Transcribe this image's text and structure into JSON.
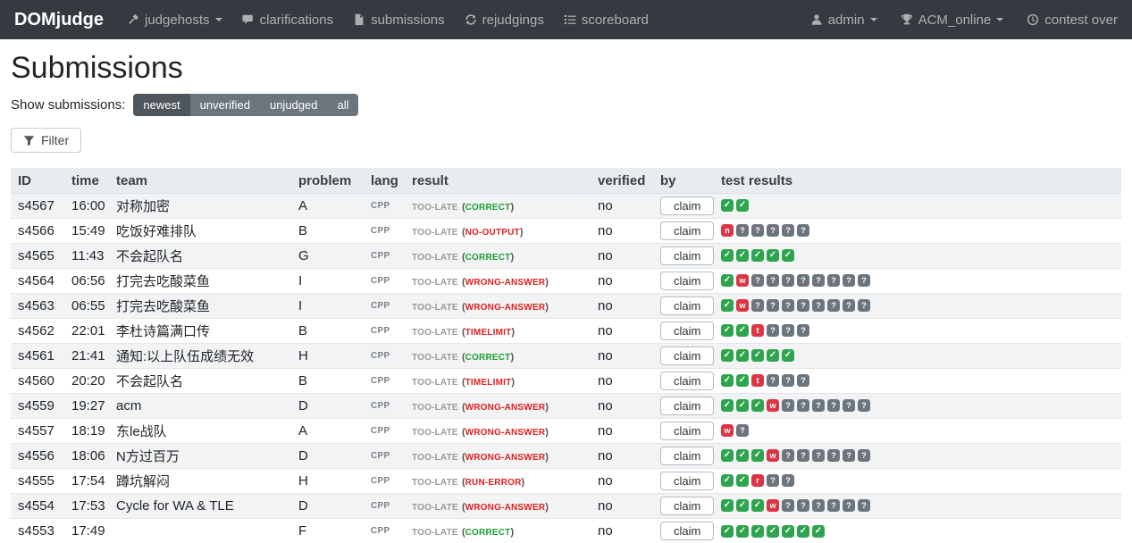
{
  "navbar": {
    "brand": "DOMjudge",
    "items": [
      {
        "label": "judgehosts",
        "icon": "gavel-icon",
        "caret": true
      },
      {
        "label": "clarifications",
        "icon": "comments-icon",
        "caret": false
      },
      {
        "label": "submissions",
        "icon": "file-icon",
        "caret": false
      },
      {
        "label": "rejudgings",
        "icon": "sync-icon",
        "caret": false
      },
      {
        "label": "scoreboard",
        "icon": "list-icon",
        "caret": false
      }
    ],
    "right": [
      {
        "label": "admin",
        "icon": "user-icon",
        "caret": true
      },
      {
        "label": "ACM_online",
        "icon": "trophy-icon",
        "caret": true
      },
      {
        "label": "contest over",
        "icon": "clock-icon",
        "caret": false
      }
    ]
  },
  "page": {
    "title": "Submissions",
    "show_label": "Show submissions:",
    "view_buttons": [
      {
        "label": "newest",
        "active": true
      },
      {
        "label": "unverified",
        "active": false
      },
      {
        "label": "unjudged",
        "active": false
      },
      {
        "label": "all",
        "active": false
      }
    ],
    "filter_label": "Filter"
  },
  "colors": {
    "navbar_bg": "#343a40",
    "badge_correct": "#2fa44f",
    "badge_fail": "#dc3545",
    "badge_pending": "#6c757d",
    "verdict_correct": "#1e9e34",
    "verdict_fail": "#e02020"
  },
  "table": {
    "columns": [
      "ID",
      "time",
      "team",
      "problem",
      "lang",
      "result",
      "verified",
      "by",
      "test results"
    ],
    "claim_label": "claim",
    "test_badge_legend": {
      "c": "correct",
      "w": "wrong-answer",
      "t": "timelimit",
      "r": "run-error",
      "n": "no-output",
      "q": "pending"
    },
    "rows": [
      {
        "id": "s4567",
        "time": "16:00",
        "team": "对称加密",
        "problem": "A",
        "lang": "CPP",
        "result_prefix": "TOO-LATE",
        "verdict": "CORRECT",
        "verdict_type": "correct",
        "verified": "no",
        "tests": "cc"
      },
      {
        "id": "s4566",
        "time": "15:49",
        "team": "吃饭好难排队",
        "problem": "B",
        "lang": "CPP",
        "result_prefix": "TOO-LATE",
        "verdict": "NO-OUTPUT",
        "verdict_type": "no-output",
        "verified": "no",
        "tests": "nqqqqq"
      },
      {
        "id": "s4565",
        "time": "11:43",
        "team": "不会起队名",
        "problem": "G",
        "lang": "CPP",
        "result_prefix": "TOO-LATE",
        "verdict": "CORRECT",
        "verdict_type": "correct",
        "verified": "no",
        "tests": "ccccc"
      },
      {
        "id": "s4564",
        "time": "06:56",
        "team": "打完去吃酸菜鱼",
        "problem": "I",
        "lang": "CPP",
        "result_prefix": "TOO-LATE",
        "verdict": "WRONG-ANSWER",
        "verdict_type": "wrong-answer",
        "verified": "no",
        "tests": "cwqqqqqqqq"
      },
      {
        "id": "s4563",
        "time": "06:55",
        "team": "打完去吃酸菜鱼",
        "problem": "I",
        "lang": "CPP",
        "result_prefix": "TOO-LATE",
        "verdict": "WRONG-ANSWER",
        "verdict_type": "wrong-answer",
        "verified": "no",
        "tests": "cwqqqqqqqq"
      },
      {
        "id": "s4562",
        "time": "22:01",
        "team": "李杜诗篇满口传",
        "problem": "B",
        "lang": "CPP",
        "result_prefix": "TOO-LATE",
        "verdict": "TIMELIMIT",
        "verdict_type": "timelimit",
        "verified": "no",
        "tests": "cctqqq"
      },
      {
        "id": "s4561",
        "time": "21:41",
        "team": "通知:以上队伍成绩无效",
        "problem": "H",
        "lang": "CPP",
        "result_prefix": "TOO-LATE",
        "verdict": "CORRECT",
        "verdict_type": "correct",
        "verified": "no",
        "tests": "ccccc"
      },
      {
        "id": "s4560",
        "time": "20:20",
        "team": "不会起队名",
        "problem": "B",
        "lang": "CPP",
        "result_prefix": "TOO-LATE",
        "verdict": "TIMELIMIT",
        "verdict_type": "timelimit",
        "verified": "no",
        "tests": "cctqqq"
      },
      {
        "id": "s4559",
        "time": "19:27",
        "team": "acm",
        "problem": "D",
        "lang": "CPP",
        "result_prefix": "TOO-LATE",
        "verdict": "WRONG-ANSWER",
        "verdict_type": "wrong-answer",
        "verified": "no",
        "tests": "cccwqqqqqq"
      },
      {
        "id": "s4557",
        "time": "18:19",
        "team": "东le战队",
        "problem": "A",
        "lang": "CPP",
        "result_prefix": "TOO-LATE",
        "verdict": "WRONG-ANSWER",
        "verdict_type": "wrong-answer",
        "verified": "no",
        "tests": "wq"
      },
      {
        "id": "s4556",
        "time": "18:06",
        "team": "N方过百万",
        "problem": "D",
        "lang": "CPP",
        "result_prefix": "TOO-LATE",
        "verdict": "WRONG-ANSWER",
        "verdict_type": "wrong-answer",
        "verified": "no",
        "tests": "cccwqqqqqq"
      },
      {
        "id": "s4555",
        "time": "17:54",
        "team": "蹲坑解闷",
        "problem": "H",
        "lang": "CPP",
        "result_prefix": "TOO-LATE",
        "verdict": "RUN-ERROR",
        "verdict_type": "run-error",
        "verified": "no",
        "tests": "ccrqq"
      },
      {
        "id": "s4554",
        "time": "17:53",
        "team": "Cycle for WA & TLE",
        "problem": "D",
        "lang": "CPP",
        "result_prefix": "TOO-LATE",
        "verdict": "WRONG-ANSWER",
        "verdict_type": "wrong-answer",
        "verified": "no",
        "tests": "cccwqqqqqq"
      },
      {
        "id": "s4553",
        "time": "17:49",
        "team": "",
        "problem": "F",
        "lang": "CPP",
        "result_prefix": "TOO-LATE",
        "verdict": "CORRECT",
        "verdict_type": "correct",
        "verified": "no",
        "tests": "ccccccc"
      }
    ]
  }
}
